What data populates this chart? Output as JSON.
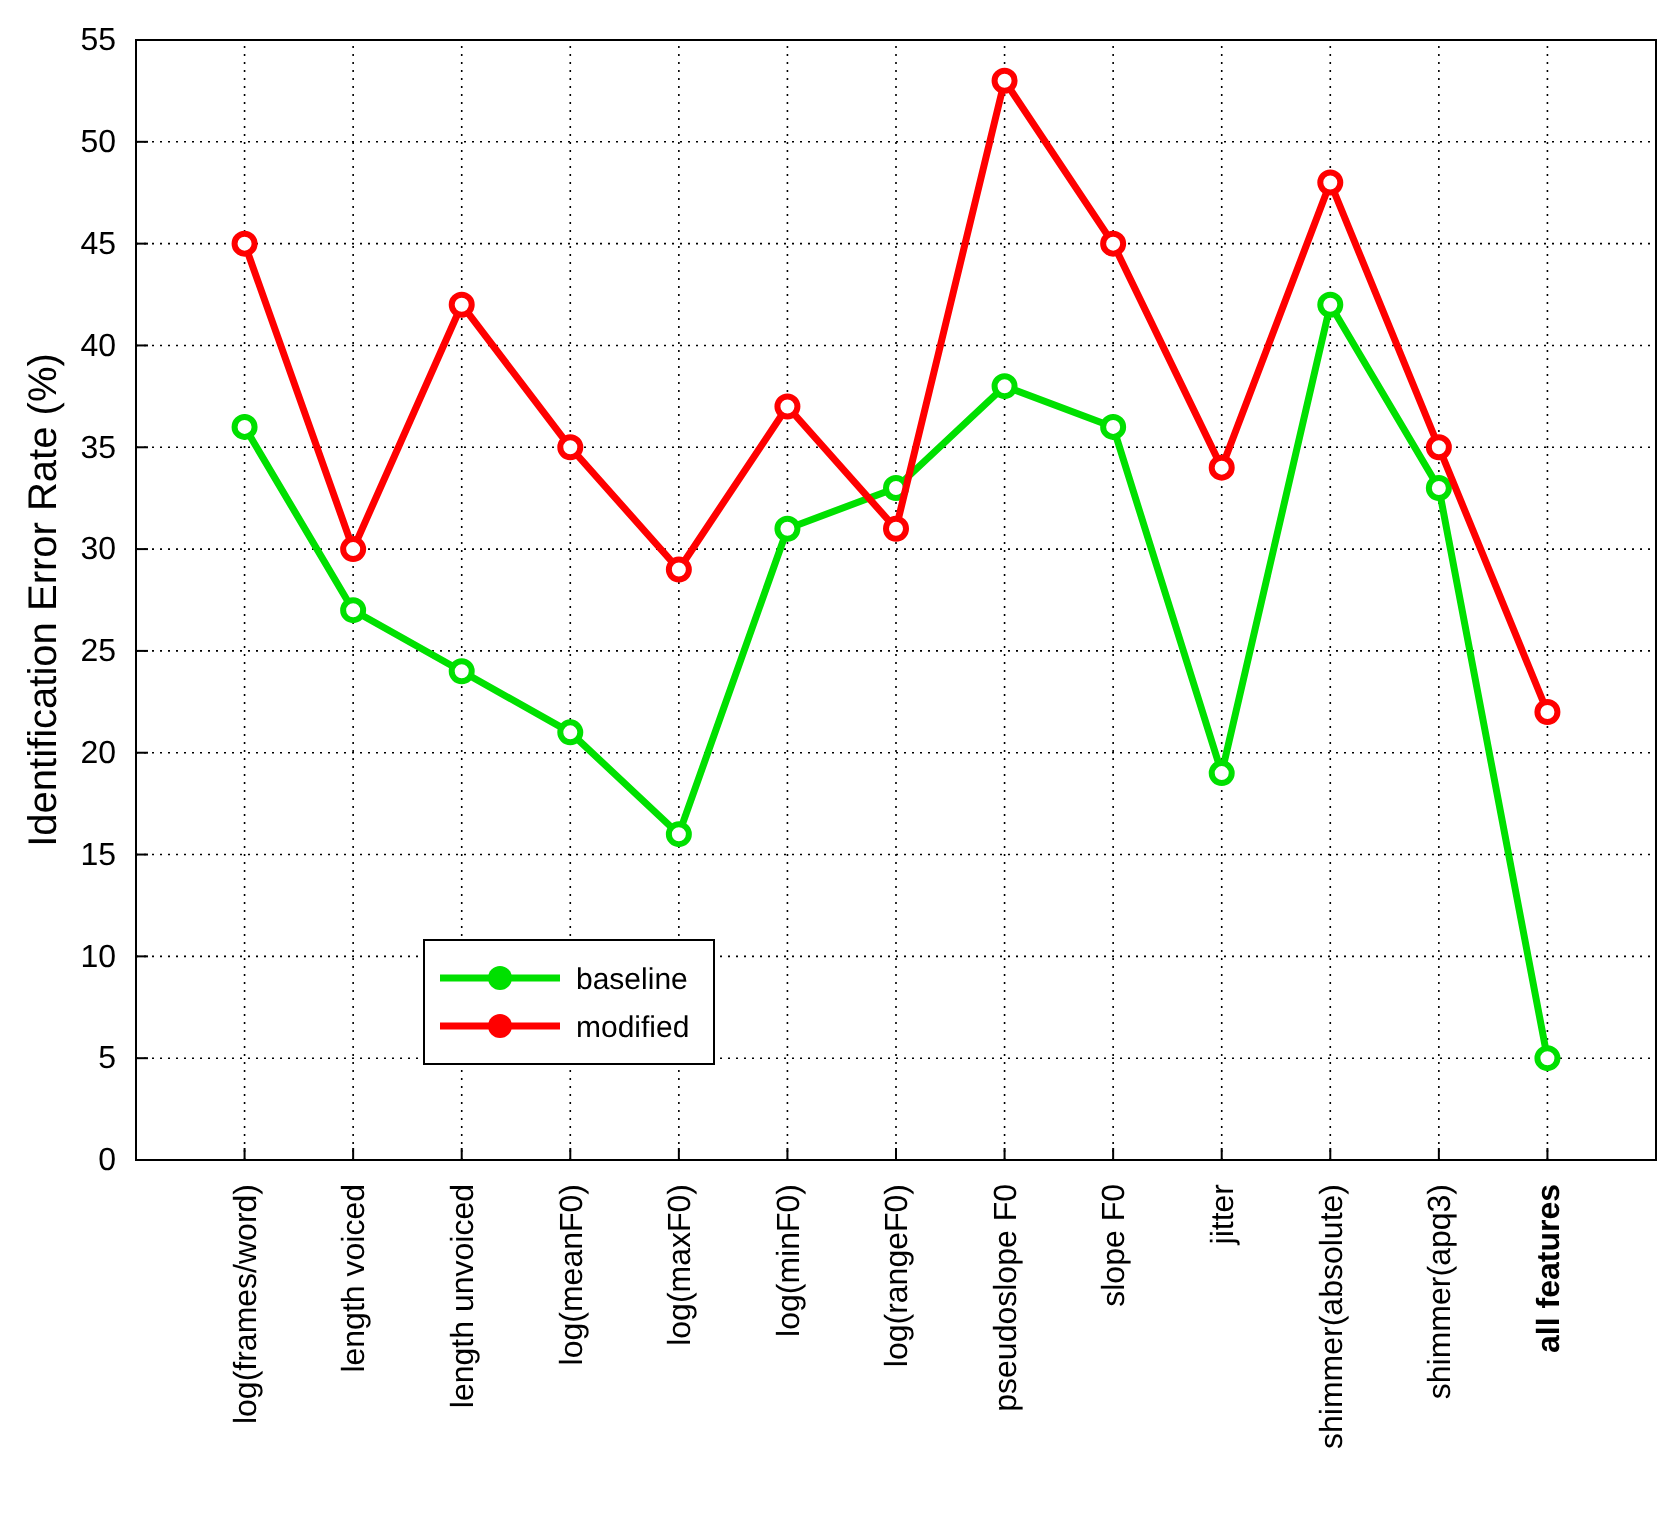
{
  "chart_data": {
    "type": "line",
    "ylabel": "Identification Error Rate (%)",
    "categories": [
      "log(frames/word)",
      "length voiced",
      "length unvoiced",
      "log(meanF0)",
      "log(maxF0)",
      "log(minF0)",
      "log(rangeF0)",
      "pseudoslope F0",
      "slope F0",
      "jitter",
      "shimmer(absolute)",
      "shimmer(apq3)",
      "all features"
    ],
    "series": [
      {
        "name": "baseline",
        "color": "#00e000",
        "values": [
          36,
          27,
          24,
          21,
          16,
          31,
          33,
          38,
          36,
          19,
          42,
          33,
          5
        ]
      },
      {
        "name": "modified",
        "color": "#ff0000",
        "values": [
          45,
          30,
          42,
          35,
          29,
          37,
          31,
          53,
          45,
          34,
          48,
          35,
          22
        ]
      }
    ],
    "ylim": [
      0,
      55
    ],
    "yticks": [
      0,
      5,
      10,
      15,
      20,
      25,
      30,
      35,
      40,
      45,
      50,
      55
    ],
    "grid": true,
    "legend": "bottom left",
    "marker": "circle",
    "line_style": "solid"
  }
}
